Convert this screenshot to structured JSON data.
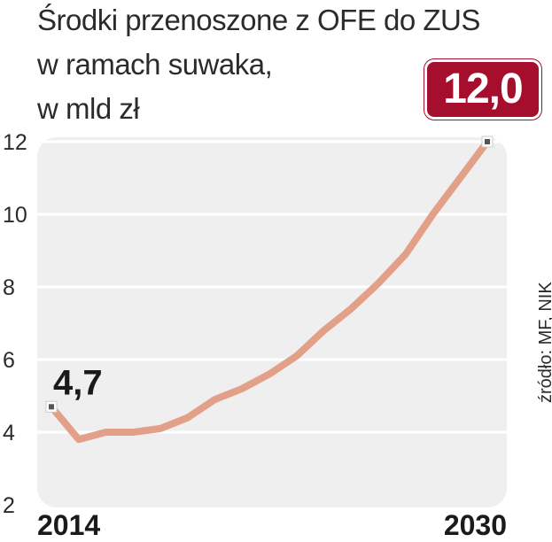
{
  "title_lines": [
    "Środki przenoszone z OFE do ZUS",
    "w ramach suwaka,",
    "w mld zł"
  ],
  "badge": "12,0",
  "source": "źródło: MF, NIK",
  "colors": {
    "line": "#e3a088",
    "plot_bg": "#efefef",
    "badge": "#a50f2d",
    "marker": "#555555"
  },
  "chart_data": {
    "type": "line",
    "x": [
      2014,
      2015,
      2016,
      2017,
      2018,
      2019,
      2020,
      2021,
      2022,
      2023,
      2024,
      2025,
      2026,
      2027,
      2028,
      2029,
      2030
    ],
    "values": [
      4.7,
      3.8,
      4.0,
      4.0,
      4.1,
      4.4,
      4.9,
      5.2,
      5.6,
      6.1,
      6.8,
      7.4,
      8.1,
      8.9,
      10.0,
      11.0,
      12.0
    ],
    "xticks": [
      "2014",
      "2030"
    ],
    "yticks": [
      2,
      4,
      6,
      8,
      10,
      12
    ],
    "ylim": [
      2,
      12
    ],
    "data_labels": [
      {
        "label": "4,7",
        "index": 0
      },
      {
        "label": "12,0",
        "index": 16
      }
    ],
    "grid": true
  }
}
